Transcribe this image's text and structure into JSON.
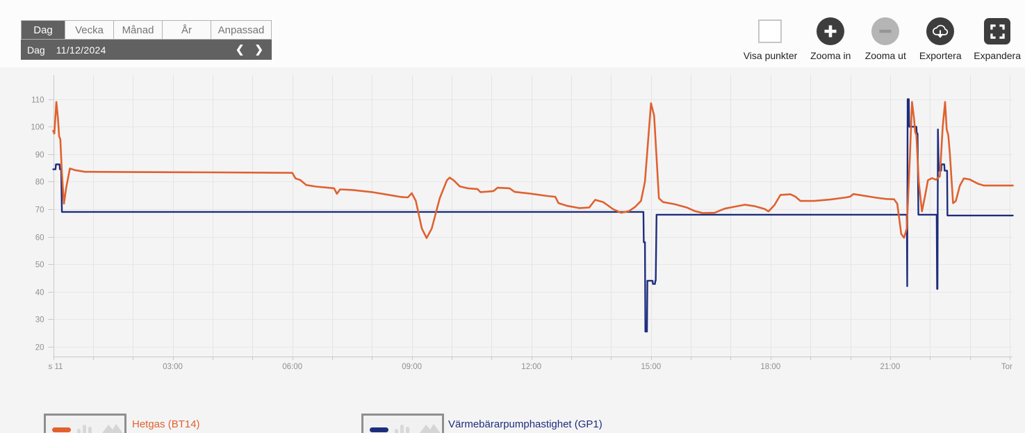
{
  "period_tabs": {
    "items": [
      {
        "label": "Dag",
        "selected": true
      },
      {
        "label": "Vecka",
        "selected": false
      },
      {
        "label": "Månad",
        "selected": false
      },
      {
        "label": "År",
        "selected": false
      },
      {
        "label": "Anpassad",
        "selected": false
      }
    ]
  },
  "date_nav": {
    "mode": "Dag",
    "date": "11/12/2024",
    "prev": "❮",
    "next": "❯"
  },
  "toolbar": {
    "show_points_label": "Visa punkter",
    "show_points_checked": false,
    "zoom_in_label": "Zooma in",
    "zoom_out_label": "Zooma ut",
    "zoom_out_disabled": true,
    "export_label": "Exportera",
    "expand_label": "Expandera"
  },
  "legend": {
    "items": [
      {
        "label": "Hetgas (BT14)",
        "color": "#e0612e"
      },
      {
        "label": "Värmebärarpumphastighet (GP1)",
        "color": "#1d2d7c"
      }
    ]
  },
  "colors": {
    "accent_orange": "#e0612e",
    "accent_navy": "#1d2d7c",
    "grid_vertical": "#e4e4e5",
    "grid_horizontal": "#e7e7e8",
    "axis": "#c8c8c8",
    "axis_label": "#8f8f8f",
    "button_dark": "#3d3d3d",
    "button_disabled": "#b5b5b5",
    "bar_dark": "#616161"
  },
  "chart_data": {
    "type": "line",
    "title": "",
    "xlabel": "",
    "ylabel": "",
    "grid": true,
    "legend_position": "bottom",
    "x_axis": {
      "unit": "hours_of_day",
      "min": 0,
      "max": 24,
      "minor_grid_every": 1,
      "tick_hours": [
        0,
        3,
        6,
        9,
        12,
        15,
        18,
        21,
        24
      ],
      "tick_labels": [
        "s 11",
        "03:00",
        "06:00",
        "09:00",
        "12:00",
        "15:00",
        "18:00",
        "21:00",
        "Tor"
      ]
    },
    "y_axis": {
      "min": 20,
      "max": 110,
      "step": 10
    },
    "series": [
      {
        "id": "gp1",
        "name": "Värmebärarpumphastighet (GP1)",
        "color": "#1d2d7c",
        "width": 2.4,
        "points": [
          [
            0.0,
            84.5
          ],
          [
            0.06,
            84.5
          ],
          [
            0.07,
            86.3
          ],
          [
            0.16,
            86.3
          ],
          [
            0.17,
            84.5
          ],
          [
            0.2,
            84.5
          ],
          [
            0.22,
            69
          ],
          [
            14.81,
            69
          ],
          [
            14.82,
            58
          ],
          [
            14.85,
            58
          ],
          [
            14.86,
            25.5
          ],
          [
            14.9,
            25.5
          ],
          [
            14.91,
            44
          ],
          [
            15.04,
            44
          ],
          [
            15.05,
            42.8
          ],
          [
            15.1,
            42.8
          ],
          [
            15.11,
            44
          ],
          [
            15.12,
            44
          ],
          [
            15.14,
            68
          ],
          [
            21.42,
            68
          ],
          [
            21.43,
            42
          ],
          [
            21.44,
            110
          ],
          [
            21.47,
            110
          ],
          [
            21.48,
            100
          ],
          [
            21.66,
            100
          ],
          [
            21.67,
            97.5
          ],
          [
            21.69,
            97.5
          ],
          [
            21.71,
            68
          ],
          [
            22.17,
            68
          ],
          [
            22.18,
            41
          ],
          [
            22.19,
            41
          ],
          [
            22.2,
            99
          ],
          [
            22.22,
            84
          ],
          [
            22.28,
            84
          ],
          [
            22.29,
            86.3
          ],
          [
            22.36,
            86.3
          ],
          [
            22.37,
            84
          ],
          [
            22.43,
            84
          ],
          [
            22.44,
            67.7
          ],
          [
            24.08,
            67.7
          ]
        ]
      },
      {
        "id": "bt14",
        "name": "Hetgas (BT14)",
        "color": "#e0612e",
        "width": 2.6,
        "points": [
          [
            0.0,
            98.5
          ],
          [
            0.03,
            97.5
          ],
          [
            0.08,
            109
          ],
          [
            0.12,
            103
          ],
          [
            0.15,
            96.5
          ],
          [
            0.18,
            95.5
          ],
          [
            0.22,
            83
          ],
          [
            0.27,
            72
          ],
          [
            0.33,
            78
          ],
          [
            0.42,
            84.8
          ],
          [
            0.55,
            84.2
          ],
          [
            0.8,
            83.6
          ],
          [
            2.0,
            83.5
          ],
          [
            4.0,
            83.4
          ],
          [
            6.0,
            83.2
          ],
          [
            6.08,
            81.2
          ],
          [
            6.2,
            80.6
          ],
          [
            6.35,
            78.8
          ],
          [
            6.6,
            78.2
          ],
          [
            6.9,
            77.8
          ],
          [
            7.05,
            77.6
          ],
          [
            7.12,
            75.6
          ],
          [
            7.2,
            77.2
          ],
          [
            7.5,
            77.0
          ],
          [
            8.0,
            76.2
          ],
          [
            8.5,
            75.0
          ],
          [
            8.75,
            74.4
          ],
          [
            8.9,
            74.3
          ],
          [
            9.0,
            75.8
          ],
          [
            9.1,
            73
          ],
          [
            9.25,
            63
          ],
          [
            9.37,
            59.5
          ],
          [
            9.5,
            63
          ],
          [
            9.7,
            74
          ],
          [
            9.88,
            80.5
          ],
          [
            9.95,
            81.5
          ],
          [
            10.05,
            80.5
          ],
          [
            10.2,
            78.3
          ],
          [
            10.4,
            77.6
          ],
          [
            10.65,
            77.3
          ],
          [
            10.72,
            76.2
          ],
          [
            10.9,
            76.4
          ],
          [
            11.05,
            76.6
          ],
          [
            11.15,
            77.8
          ],
          [
            11.45,
            77.6
          ],
          [
            11.58,
            76.3
          ],
          [
            12.0,
            75.6
          ],
          [
            12.4,
            74.8
          ],
          [
            12.6,
            74.5
          ],
          [
            12.68,
            72.2
          ],
          [
            12.9,
            71.2
          ],
          [
            13.2,
            70.4
          ],
          [
            13.45,
            70.6
          ],
          [
            13.6,
            73.4
          ],
          [
            13.8,
            72.6
          ],
          [
            14.05,
            70.0
          ],
          [
            14.25,
            68.7
          ],
          [
            14.45,
            69.3
          ],
          [
            14.6,
            70.8
          ],
          [
            14.75,
            73.0
          ],
          [
            14.85,
            80
          ],
          [
            15.0,
            108.5
          ],
          [
            15.08,
            104
          ],
          [
            15.2,
            74
          ],
          [
            15.3,
            72.6
          ],
          [
            15.6,
            71.8
          ],
          [
            15.9,
            70.6
          ],
          [
            16.1,
            69.3
          ],
          [
            16.3,
            68.6
          ],
          [
            16.6,
            68.7
          ],
          [
            16.85,
            70.2
          ],
          [
            17.1,
            70.9
          ],
          [
            17.35,
            71.6
          ],
          [
            17.6,
            71.1
          ],
          [
            17.85,
            70.1
          ],
          [
            17.95,
            69.2
          ],
          [
            18.1,
            71.5
          ],
          [
            18.25,
            75.2
          ],
          [
            18.5,
            75.4
          ],
          [
            18.62,
            74.6
          ],
          [
            18.75,
            73.0
          ],
          [
            19.1,
            73.0
          ],
          [
            19.5,
            73.5
          ],
          [
            19.9,
            74.3
          ],
          [
            20.0,
            74.6
          ],
          [
            20.08,
            75.5
          ],
          [
            20.3,
            75.0
          ],
          [
            20.6,
            74.3
          ],
          [
            20.9,
            73.7
          ],
          [
            21.1,
            73.6
          ],
          [
            21.18,
            72
          ],
          [
            21.28,
            61
          ],
          [
            21.35,
            59.6
          ],
          [
            21.42,
            63
          ],
          [
            21.5,
            90
          ],
          [
            21.55,
            109
          ],
          [
            21.6,
            103
          ],
          [
            21.63,
            98
          ],
          [
            21.66,
            97
          ],
          [
            21.72,
            80
          ],
          [
            21.8,
            69.2
          ],
          [
            21.88,
            75
          ],
          [
            21.95,
            80.5
          ],
          [
            22.05,
            81.3
          ],
          [
            22.15,
            80.7
          ],
          [
            22.25,
            82
          ],
          [
            22.32,
            100
          ],
          [
            22.38,
            109
          ],
          [
            22.42,
            99
          ],
          [
            22.46,
            97
          ],
          [
            22.5,
            90
          ],
          [
            22.58,
            72.2
          ],
          [
            22.65,
            73
          ],
          [
            22.75,
            78.5
          ],
          [
            22.85,
            81.2
          ],
          [
            23.0,
            80.8
          ],
          [
            23.2,
            79.3
          ],
          [
            23.35,
            78.6
          ],
          [
            24.08,
            78.6
          ]
        ]
      }
    ]
  }
}
